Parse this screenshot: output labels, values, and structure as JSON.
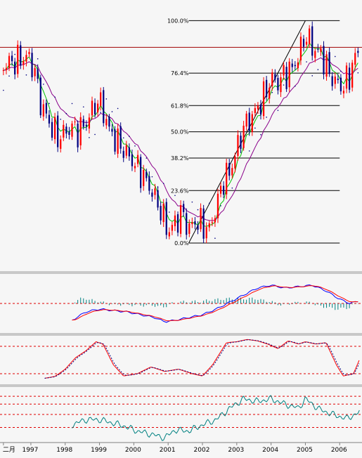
{
  "chart_data": [
    {
      "type": "candlestick",
      "panel": "price",
      "x_tick_labels": [
        "二月",
        "1997",
        "1998",
        "1999",
        "2000",
        "2001",
        "2002",
        "2003",
        "2004",
        "2005",
        "2006"
      ],
      "x_ticks": [
        1996.2,
        1997,
        1998,
        1999,
        2000,
        2001,
        2002,
        2003,
        2004,
        2005,
        2006
      ],
      "xlim": [
        1996.1,
        2006.65
      ],
      "ylim": [
        -0.12,
        1.08
      ],
      "price_units": "fraction of Fibonacci range (0.0% low to 100.0% high)",
      "horizontal_line": {
        "value": 0.88,
        "color": "#a00000"
      },
      "fibonacci": {
        "anchor_low": {
          "x": 2001.6,
          "y": 0.0
        },
        "anchor_high": {
          "x": 2005.0,
          "y": 1.0
        },
        "levels": [
          {
            "label": "0.0%",
            "value": 0.0
          },
          {
            "label": "23.6%",
            "value": 0.236
          },
          {
            "label": "38.2%",
            "value": 0.382
          },
          {
            "label": "50.0%",
            "value": 0.5
          },
          {
            "label": "61.8%",
            "value": 0.618
          },
          {
            "label": "76.4%",
            "value": 0.764
          },
          {
            "label": "100.0%",
            "value": 1.0
          }
        ]
      },
      "close_keypoints": [
        [
          1996.2,
          0.8
        ],
        [
          1996.6,
          0.82
        ],
        [
          1996.9,
          0.84
        ],
        [
          1997.1,
          0.78
        ],
        [
          1997.3,
          0.62
        ],
        [
          1997.6,
          0.52
        ],
        [
          1997.8,
          0.47
        ],
        [
          1998.0,
          0.5
        ],
        [
          1998.2,
          0.52
        ],
        [
          1998.4,
          0.5
        ],
        [
          1998.6,
          0.54
        ],
        [
          1998.8,
          0.6
        ],
        [
          1998.95,
          0.64
        ],
        [
          1999.1,
          0.6
        ],
        [
          1999.3,
          0.5
        ],
        [
          1999.6,
          0.44
        ],
        [
          1999.9,
          0.38
        ],
        [
          2000.2,
          0.32
        ],
        [
          2000.5,
          0.24
        ],
        [
          2000.8,
          0.14
        ],
        [
          2001.0,
          0.05
        ],
        [
          2001.2,
          0.09
        ],
        [
          2001.4,
          0.14
        ],
        [
          2001.6,
          0.06
        ],
        [
          2001.8,
          0.1
        ],
        [
          2002.0,
          0.08
        ],
        [
          2002.2,
          0.06
        ],
        [
          2002.4,
          0.16
        ],
        [
          2002.6,
          0.28
        ],
        [
          2002.8,
          0.32
        ],
        [
          2003.0,
          0.42
        ],
        [
          2003.2,
          0.52
        ],
        [
          2003.5,
          0.58
        ],
        [
          2003.8,
          0.66
        ],
        [
          2004.0,
          0.74
        ],
        [
          2004.2,
          0.72
        ],
        [
          2004.4,
          0.76
        ],
        [
          2004.6,
          0.78
        ],
        [
          2004.8,
          0.84
        ],
        [
          2005.0,
          0.94
        ],
        [
          2005.2,
          0.88
        ],
        [
          2005.5,
          0.84
        ],
        [
          2005.7,
          0.76
        ],
        [
          2005.9,
          0.72
        ],
        [
          2006.1,
          0.7
        ],
        [
          2006.3,
          0.76
        ],
        [
          2006.5,
          0.86
        ],
        [
          2006.6,
          0.86
        ]
      ],
      "series": [
        {
          "name": "",
          "style": "candles",
          "up_color": "#ff0000",
          "down_color": "#000080"
        },
        {
          "name": "",
          "style": "line",
          "color": "#00c000",
          "smoothing": 5
        },
        {
          "name": "",
          "style": "line",
          "color": "#8a008a",
          "smoothing": 14
        },
        {
          "name": "",
          "style": "dots",
          "color": "#000080"
        }
      ]
    },
    {
      "type": "line",
      "panel": "macd",
      "ylim": [
        -1.0,
        1.0
      ],
      "reference_lines": [
        0.0
      ],
      "keypoints": [
        [
          1998.2,
          -0.6
        ],
        [
          1998.6,
          -0.3
        ],
        [
          1999.0,
          -0.2
        ],
        [
          1999.4,
          -0.25
        ],
        [
          1999.8,
          -0.3
        ],
        [
          2000.2,
          -0.4
        ],
        [
          2000.6,
          -0.5
        ],
        [
          2000.9,
          -0.65
        ],
        [
          2001.2,
          -0.6
        ],
        [
          2001.6,
          -0.5
        ],
        [
          2002.0,
          -0.4
        ],
        [
          2002.4,
          -0.2
        ],
        [
          2002.8,
          0.05
        ],
        [
          2003.2,
          0.3
        ],
        [
          2003.6,
          0.55
        ],
        [
          2004.0,
          0.65
        ],
        [
          2004.4,
          0.55
        ],
        [
          2004.8,
          0.6
        ],
        [
          2005.2,
          0.65
        ],
        [
          2005.6,
          0.45
        ],
        [
          2006.0,
          0.15
        ],
        [
          2006.3,
          0.0
        ],
        [
          2006.6,
          0.1
        ]
      ],
      "series": [
        {
          "name": "",
          "style": "line",
          "color": "#0000ff",
          "smoothing": 0
        },
        {
          "name": "",
          "style": "line",
          "color": "#ff0000",
          "smoothing": 3
        },
        {
          "name": "",
          "style": "histogram",
          "color": "#008080"
        }
      ]
    },
    {
      "type": "line",
      "panel": "stochastic",
      "ylim": [
        0,
        100
      ],
      "reference_lines": [
        20,
        80
      ],
      "keypoints": [
        [
          1997.4,
          10
        ],
        [
          1997.7,
          14
        ],
        [
          1998.0,
          30
        ],
        [
          1998.3,
          55
        ],
        [
          1998.6,
          70
        ],
        [
          1998.9,
          90
        ],
        [
          1999.1,
          85
        ],
        [
          1999.4,
          40
        ],
        [
          1999.7,
          15
        ],
        [
          2000.1,
          20
        ],
        [
          2000.5,
          35
        ],
        [
          2000.9,
          25
        ],
        [
          2001.3,
          30
        ],
        [
          2001.7,
          20
        ],
        [
          2002.0,
          15
        ],
        [
          2002.3,
          40
        ],
        [
          2002.7,
          88
        ],
        [
          2003.0,
          90
        ],
        [
          2003.3,
          95
        ],
        [
          2003.6,
          92
        ],
        [
          2003.9,
          85
        ],
        [
          2004.2,
          75
        ],
        [
          2004.5,
          92
        ],
        [
          2004.8,
          85
        ],
        [
          2005.0,
          90
        ],
        [
          2005.3,
          85
        ],
        [
          2005.6,
          88
        ],
        [
          2005.9,
          40
        ],
        [
          2006.1,
          15
        ],
        [
          2006.4,
          20
        ],
        [
          2006.6,
          55
        ]
      ],
      "series": [
        {
          "name": "",
          "style": "line",
          "color": "#ff0000"
        },
        {
          "name": "",
          "style": "dashed-line",
          "color": "#000080"
        }
      ]
    },
    {
      "type": "line",
      "panel": "oscillator",
      "ylim": [
        0,
        100
      ],
      "reference_lines": [
        25,
        50,
        70,
        85
      ],
      "keypoints": [
        [
          1998.2,
          30
        ],
        [
          1998.6,
          40
        ],
        [
          1999.0,
          40
        ],
        [
          1999.3,
          35
        ],
        [
          1999.7,
          28
        ],
        [
          2000.1,
          18
        ],
        [
          2000.5,
          12
        ],
        [
          2000.9,
          5
        ],
        [
          2001.2,
          20
        ],
        [
          2001.6,
          18
        ],
        [
          2002.0,
          30
        ],
        [
          2002.4,
          40
        ],
        [
          2002.8,
          62
        ],
        [
          2003.2,
          80
        ],
        [
          2003.6,
          75
        ],
        [
          2004.0,
          80
        ],
        [
          2004.4,
          70
        ],
        [
          2004.8,
          62
        ],
        [
          2005.0,
          80
        ],
        [
          2005.4,
          60
        ],
        [
          2005.8,
          50
        ],
        [
          2006.2,
          42
        ],
        [
          2006.6,
          55
        ]
      ],
      "series": [
        {
          "name": "",
          "style": "line",
          "color": "#008080"
        }
      ]
    }
  ]
}
